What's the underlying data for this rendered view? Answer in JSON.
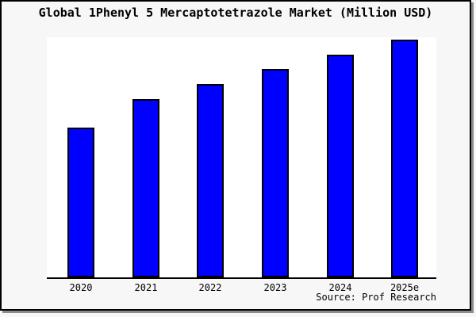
{
  "title": "Global 1Phenyl 5 Mercaptotetrazole Market (Million USD)",
  "source": "Source: Prof Research",
  "colors": {
    "page_background": "#f7f7f7",
    "plot_background": "#ffffff",
    "bar_fill": "#0000ff",
    "bar_border": "#000000",
    "axis_line": "#000000",
    "frame_border": "#000000",
    "frame_shadow": "#8c8c8c",
    "text": "#000000"
  },
  "chart_data": {
    "type": "bar",
    "title": "Global 1Phenyl 5 Mercaptotetrazole Market (Million USD)",
    "categories": [
      "2020",
      "2021",
      "2022",
      "2023",
      "2024",
      "2025e"
    ],
    "values": [
      63,
      75,
      81.3,
      87.7,
      93.7,
      100
    ],
    "value_scale": "relative estimate, tallest bar (2025e) = 100; y-axis is unlabeled in the figure",
    "xlabel": "",
    "ylabel": "",
    "ylim": [
      0,
      101
    ],
    "grid": false,
    "legend": false,
    "bar_color": "#0000ff",
    "source": "Source: Prof Research"
  }
}
